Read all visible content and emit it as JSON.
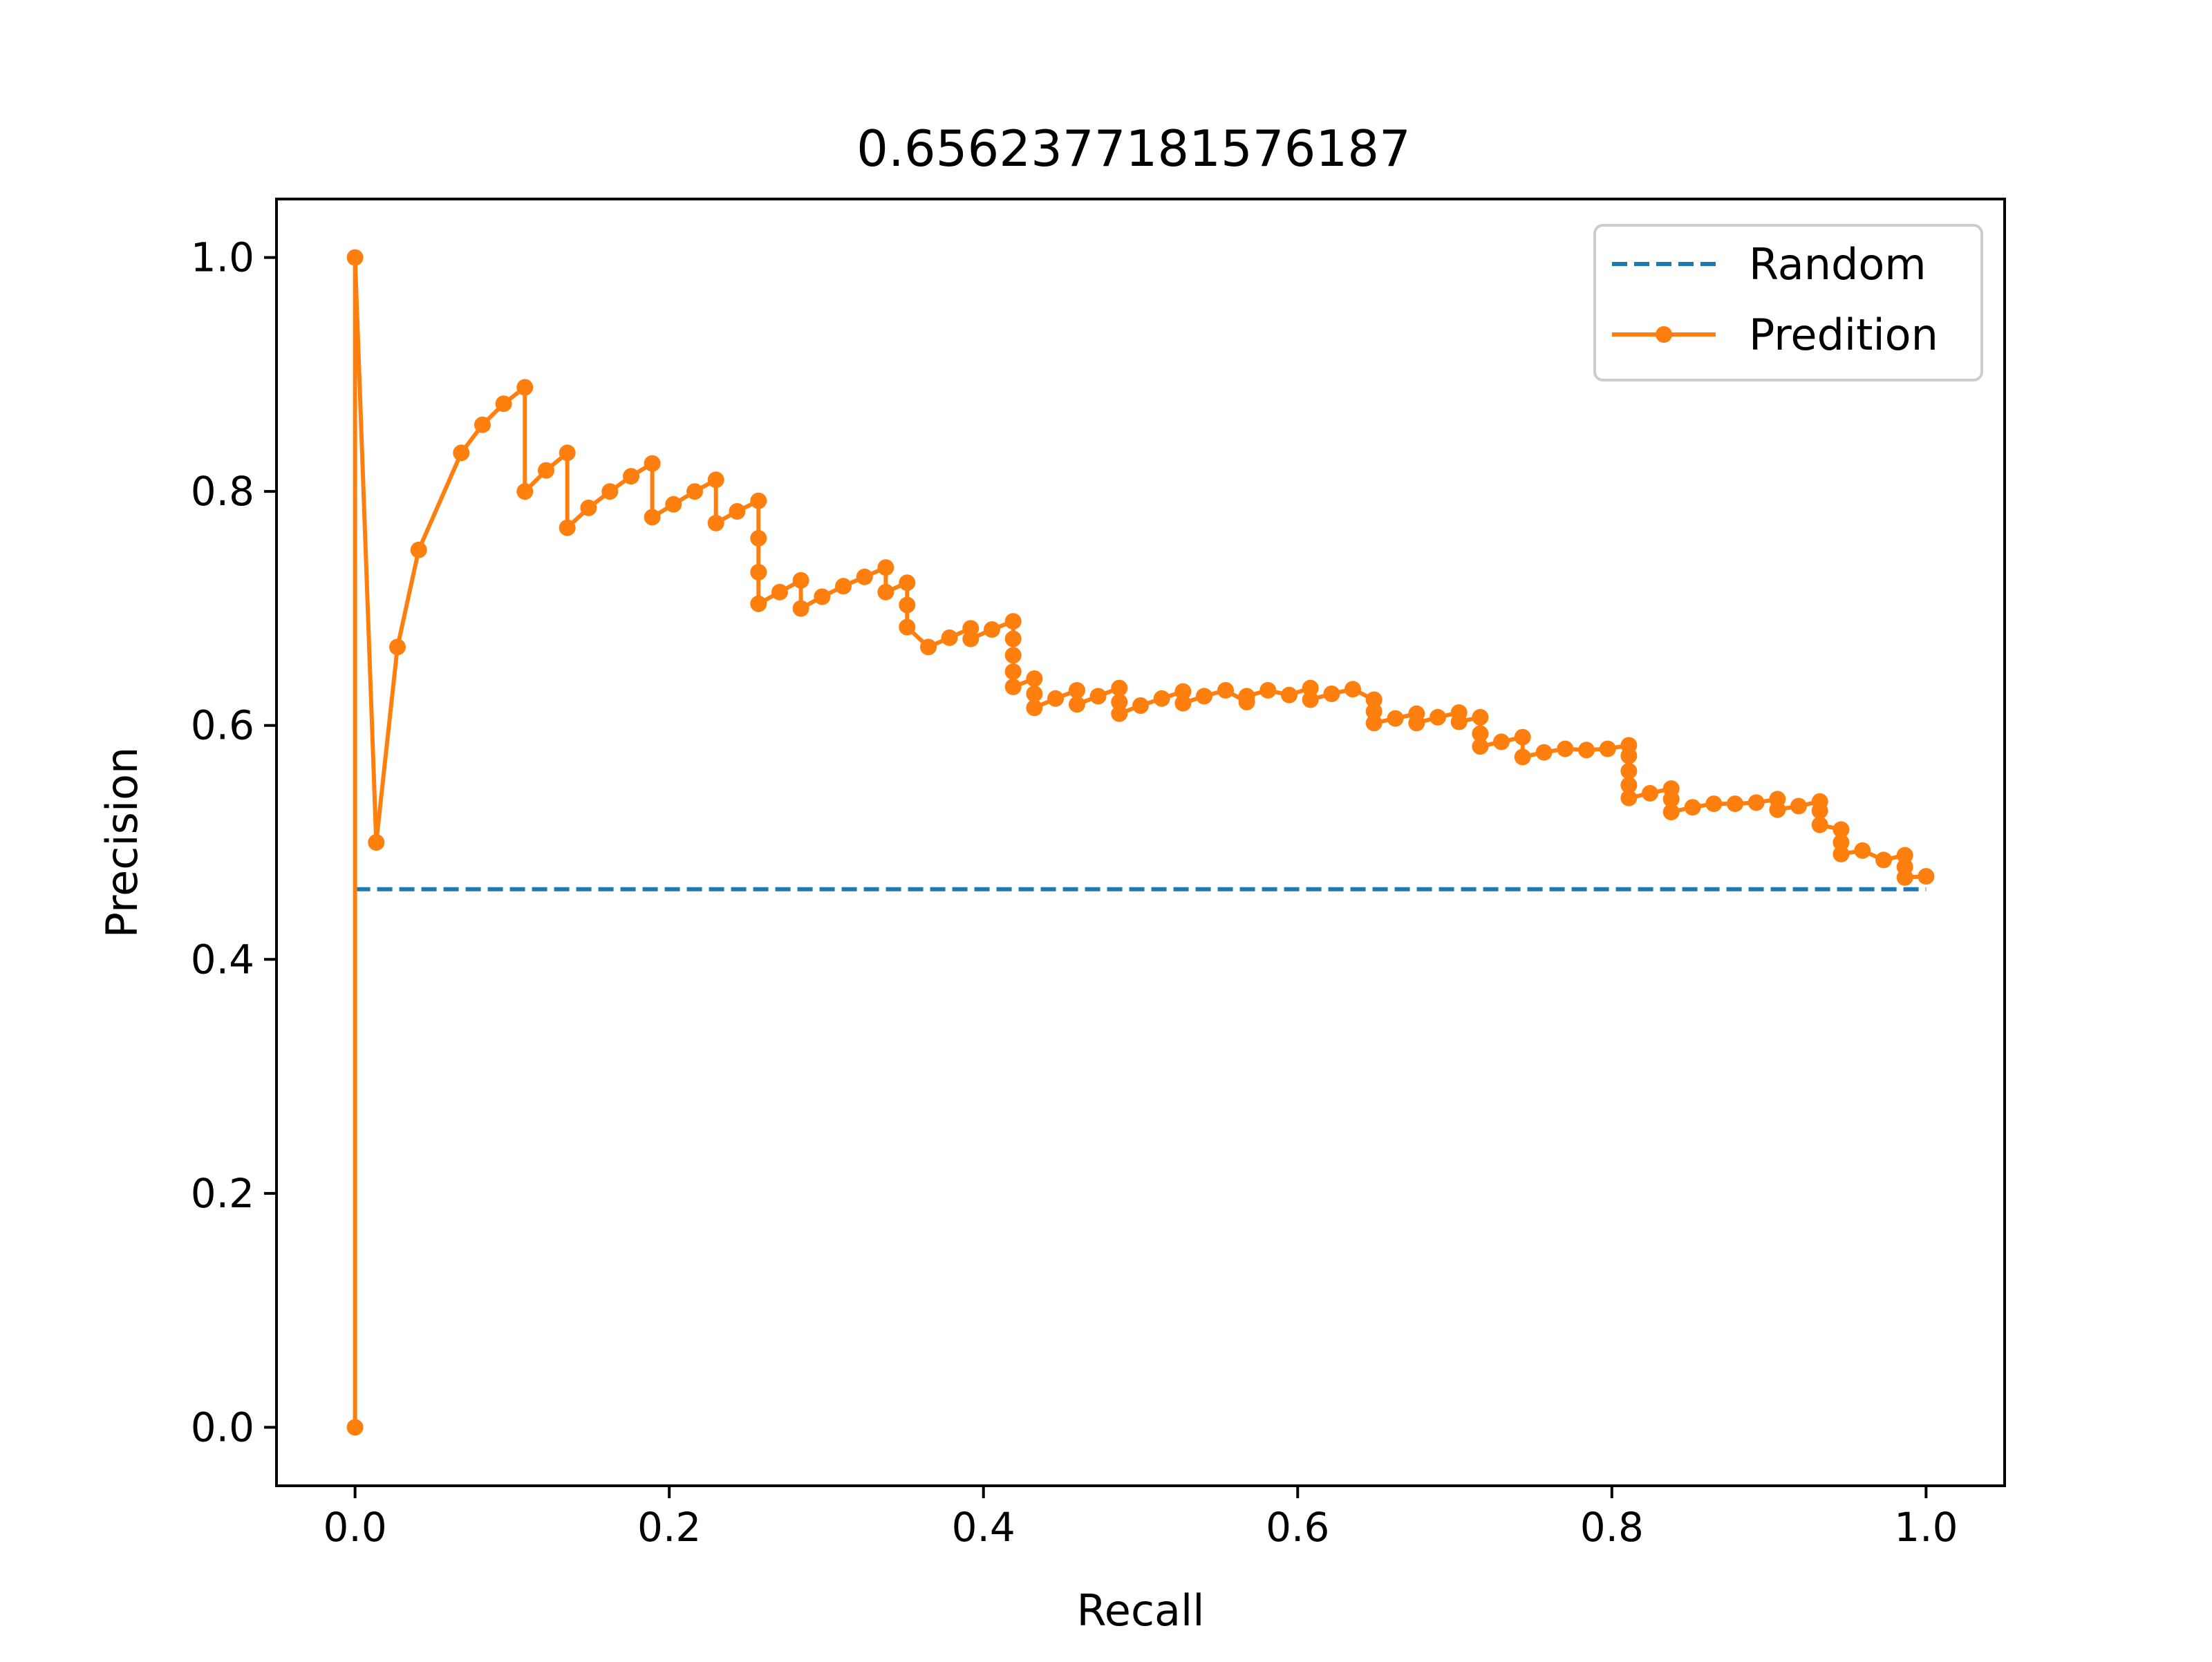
{
  "chart_data": {
    "type": "line",
    "title": "0.6562377181576187",
    "xlabel": "Recall",
    "ylabel": "Precision",
    "xlim": [
      -0.05,
      1.05
    ],
    "ylim": [
      -0.05,
      1.05
    ],
    "xticks": [
      0.0,
      0.2,
      0.4,
      0.6,
      0.8,
      1.0
    ],
    "yticks": [
      0.0,
      0.2,
      0.4,
      0.6,
      0.8,
      1.0
    ],
    "xtick_labels": [
      "0.0",
      "0.2",
      "0.4",
      "0.6",
      "0.8",
      "1.0"
    ],
    "ytick_labels": [
      "0.0",
      "0.2",
      "0.4",
      "0.6",
      "0.8",
      "1.0"
    ],
    "grid": false,
    "legend_position": "top-right",
    "series": [
      {
        "name": "Random",
        "style": "dashed",
        "marker": "none",
        "color": "#1f77b4",
        "x": [
          0.0,
          1.0
        ],
        "y": [
          0.46,
          0.46
        ]
      },
      {
        "name": "Predition",
        "style": "solid",
        "marker": "dot",
        "color": "#ff7f0e",
        "x": [
          0.0,
          0.0,
          0.0135,
          0.027,
          0.0405,
          0.0676,
          0.0811,
          0.0946,
          0.1081,
          0.1081,
          0.1216,
          0.1351,
          0.1351,
          0.1486,
          0.1622,
          0.1757,
          0.1892,
          0.1892,
          0.2027,
          0.2162,
          0.2297,
          0.2297,
          0.2432,
          0.2568,
          0.2568,
          0.2568,
          0.2568,
          0.2703,
          0.2838,
          0.2838,
          0.2973,
          0.3108,
          0.3243,
          0.3378,
          0.3378,
          0.3514,
          0.3514,
          0.3514,
          0.3649,
          0.3784,
          0.3919,
          0.3919,
          0.4054,
          0.4189,
          0.4189,
          0.4189,
          0.4189,
          0.4189,
          0.4324,
          0.4324,
          0.4324,
          0.4459,
          0.4595,
          0.4595,
          0.473,
          0.4865,
          0.4865,
          0.4865,
          0.5,
          0.5135,
          0.527,
          0.527,
          0.5405,
          0.5541,
          0.5676,
          0.5676,
          0.5811,
          0.5946,
          0.6081,
          0.6081,
          0.6216,
          0.6351,
          0.6486,
          0.6486,
          0.6486,
          0.6622,
          0.6757,
          0.6757,
          0.6892,
          0.7027,
          0.7027,
          0.7162,
          0.7162,
          0.7162,
          0.7297,
          0.7432,
          0.7432,
          0.7568,
          0.7703,
          0.7838,
          0.7973,
          0.8108,
          0.8108,
          0.8108,
          0.8108,
          0.8108,
          0.8243,
          0.8378,
          0.8378,
          0.8378,
          0.8514,
          0.8649,
          0.8784,
          0.8919,
          0.9054,
          0.9054,
          0.9189,
          0.9324,
          0.9324,
          0.9324,
          0.9459,
          0.9459,
          0.9459,
          0.9595,
          0.973,
          0.9865,
          0.9865,
          0.9865,
          1.0
        ],
        "y": [
          0.0,
          1.0,
          0.5,
          0.667,
          0.75,
          0.833,
          0.857,
          0.875,
          0.889,
          0.8,
          0.818,
          0.833,
          0.769,
          0.786,
          0.8,
          0.813,
          0.824,
          0.778,
          0.789,
          0.8,
          0.81,
          0.773,
          0.783,
          0.792,
          0.76,
          0.731,
          0.704,
          0.714,
          0.724,
          0.7,
          0.71,
          0.719,
          0.727,
          0.735,
          0.714,
          0.722,
          0.703,
          0.684,
          0.667,
          0.675,
          0.683,
          0.674,
          0.682,
          0.689,
          0.674,
          0.66,
          0.646,
          0.633,
          0.64,
          0.627,
          0.615,
          0.623,
          0.63,
          0.618,
          0.625,
          0.632,
          0.62,
          0.61,
          0.617,
          0.623,
          0.629,
          0.619,
          0.625,
          0.63,
          0.62,
          0.625,
          0.63,
          0.626,
          0.632,
          0.622,
          0.627,
          0.631,
          0.622,
          0.612,
          0.602,
          0.606,
          0.61,
          0.602,
          0.607,
          0.611,
          0.603,
          0.607,
          0.593,
          0.582,
          0.586,
          0.59,
          0.573,
          0.577,
          0.58,
          0.579,
          0.58,
          0.583,
          0.574,
          0.561,
          0.549,
          0.538,
          0.542,
          0.546,
          0.537,
          0.526,
          0.53,
          0.533,
          0.533,
          0.534,
          0.537,
          0.528,
          0.531,
          0.535,
          0.527,
          0.515,
          0.511,
          0.5,
          0.49,
          0.493,
          0.485,
          0.489,
          0.479,
          0.47,
          0.471
        ]
      }
    ]
  }
}
